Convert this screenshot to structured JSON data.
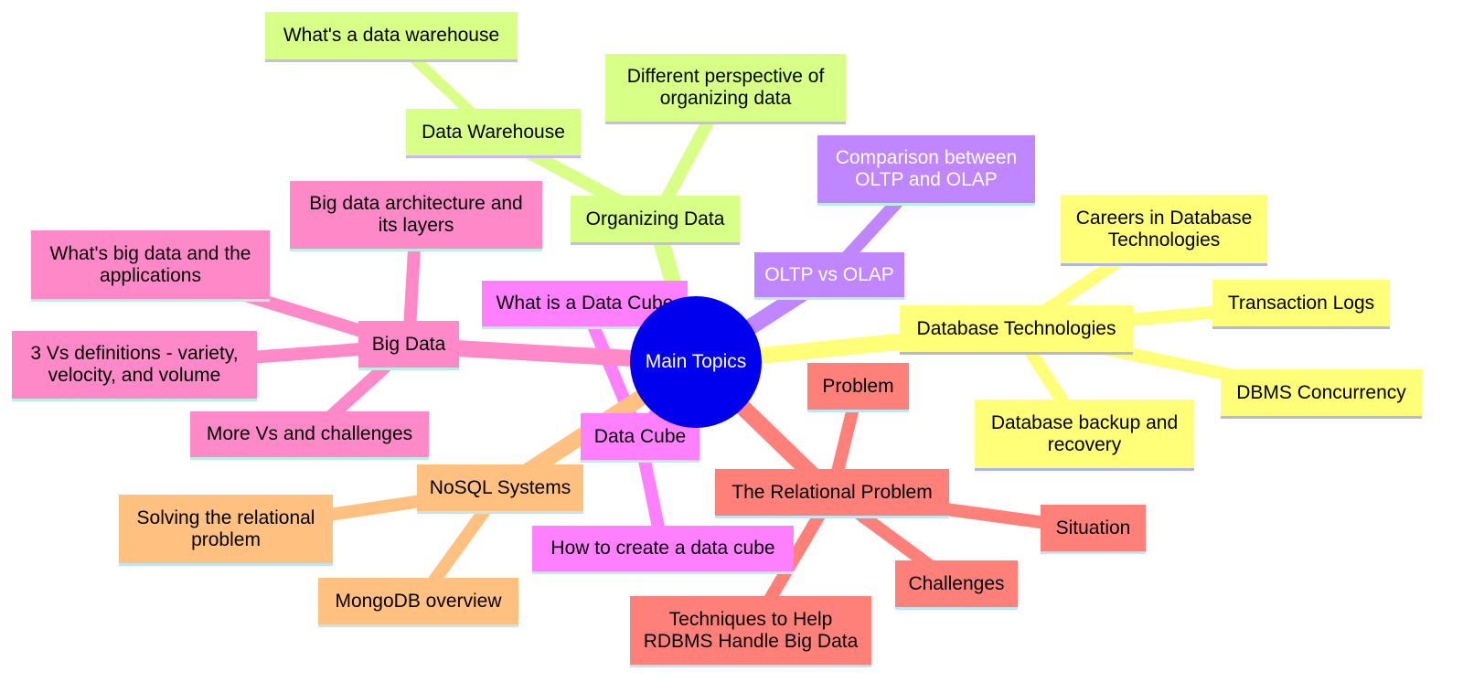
{
  "diagram": {
    "type": "mindmap",
    "root": {
      "id": "root",
      "label": "Main Topics",
      "color": "#0000ee",
      "text_color": "#ffffff"
    },
    "branches": [
      {
        "id": "organizing",
        "label": "Organizing Data",
        "color": "#d8ff86",
        "text_color": "#000000",
        "children": [
          {
            "id": "warehouse",
            "label": "Data Warehouse",
            "children": [
              {
                "id": "whats-warehouse",
                "label": "What's a data warehouse"
              }
            ]
          },
          {
            "id": "perspective",
            "label": "Different perspective of\norganizing data"
          }
        ]
      },
      {
        "id": "oltp",
        "label": "OLTP vs OLAP",
        "color": "#bf86ff",
        "text_color": "#ffffff",
        "children": [
          {
            "id": "comparison",
            "label": "Comparison between\nOLTP and OLAP"
          }
        ]
      },
      {
        "id": "dbtech",
        "label": "Database Technologies",
        "color": "#ffff78",
        "text_color": "#000000",
        "children": [
          {
            "id": "careers",
            "label": "Careers in Database\nTechnologies"
          },
          {
            "id": "translogs",
            "label": "Transaction Logs"
          },
          {
            "id": "concurrency",
            "label": "DBMS Concurrency"
          },
          {
            "id": "backup",
            "label": "Database backup and\nrecovery"
          }
        ]
      },
      {
        "id": "relational",
        "label": "The Relational Problem",
        "color": "#ff8078",
        "text_color": "#000000",
        "children": [
          {
            "id": "problem",
            "label": "Problem"
          },
          {
            "id": "situation",
            "label": "Situation"
          },
          {
            "id": "challenges",
            "label": "Challenges"
          },
          {
            "id": "techniques",
            "label": "Techniques to Help\nRDBMS Handle Big Data"
          }
        ]
      },
      {
        "id": "datacube",
        "label": "Data Cube",
        "color": "#ff80ff",
        "text_color": "#000000",
        "children": [
          {
            "id": "whatcube",
            "label": "What is a Data Cube"
          },
          {
            "id": "howcube",
            "label": "How to create a data cube"
          }
        ]
      },
      {
        "id": "nosql",
        "label": "NoSQL Systems",
        "color": "#ffc080",
        "text_color": "#000000",
        "children": [
          {
            "id": "solving",
            "label": "Solving the relational\nproblem"
          },
          {
            "id": "mongo",
            "label": "MongoDB overview"
          }
        ]
      },
      {
        "id": "bigdata",
        "label": "Big Data",
        "color": "#ff88c8",
        "text_color": "#000000",
        "children": [
          {
            "id": "architecture",
            "label": "Big data architecture and\nits layers"
          },
          {
            "id": "whatsbig",
            "label": "What's big data and the\napplications"
          },
          {
            "id": "threevs",
            "label": "3 Vs definitions - variety,\nvelocity, and volume"
          },
          {
            "id": "morevs",
            "label": "More Vs and challenges"
          }
        ]
      }
    ]
  }
}
